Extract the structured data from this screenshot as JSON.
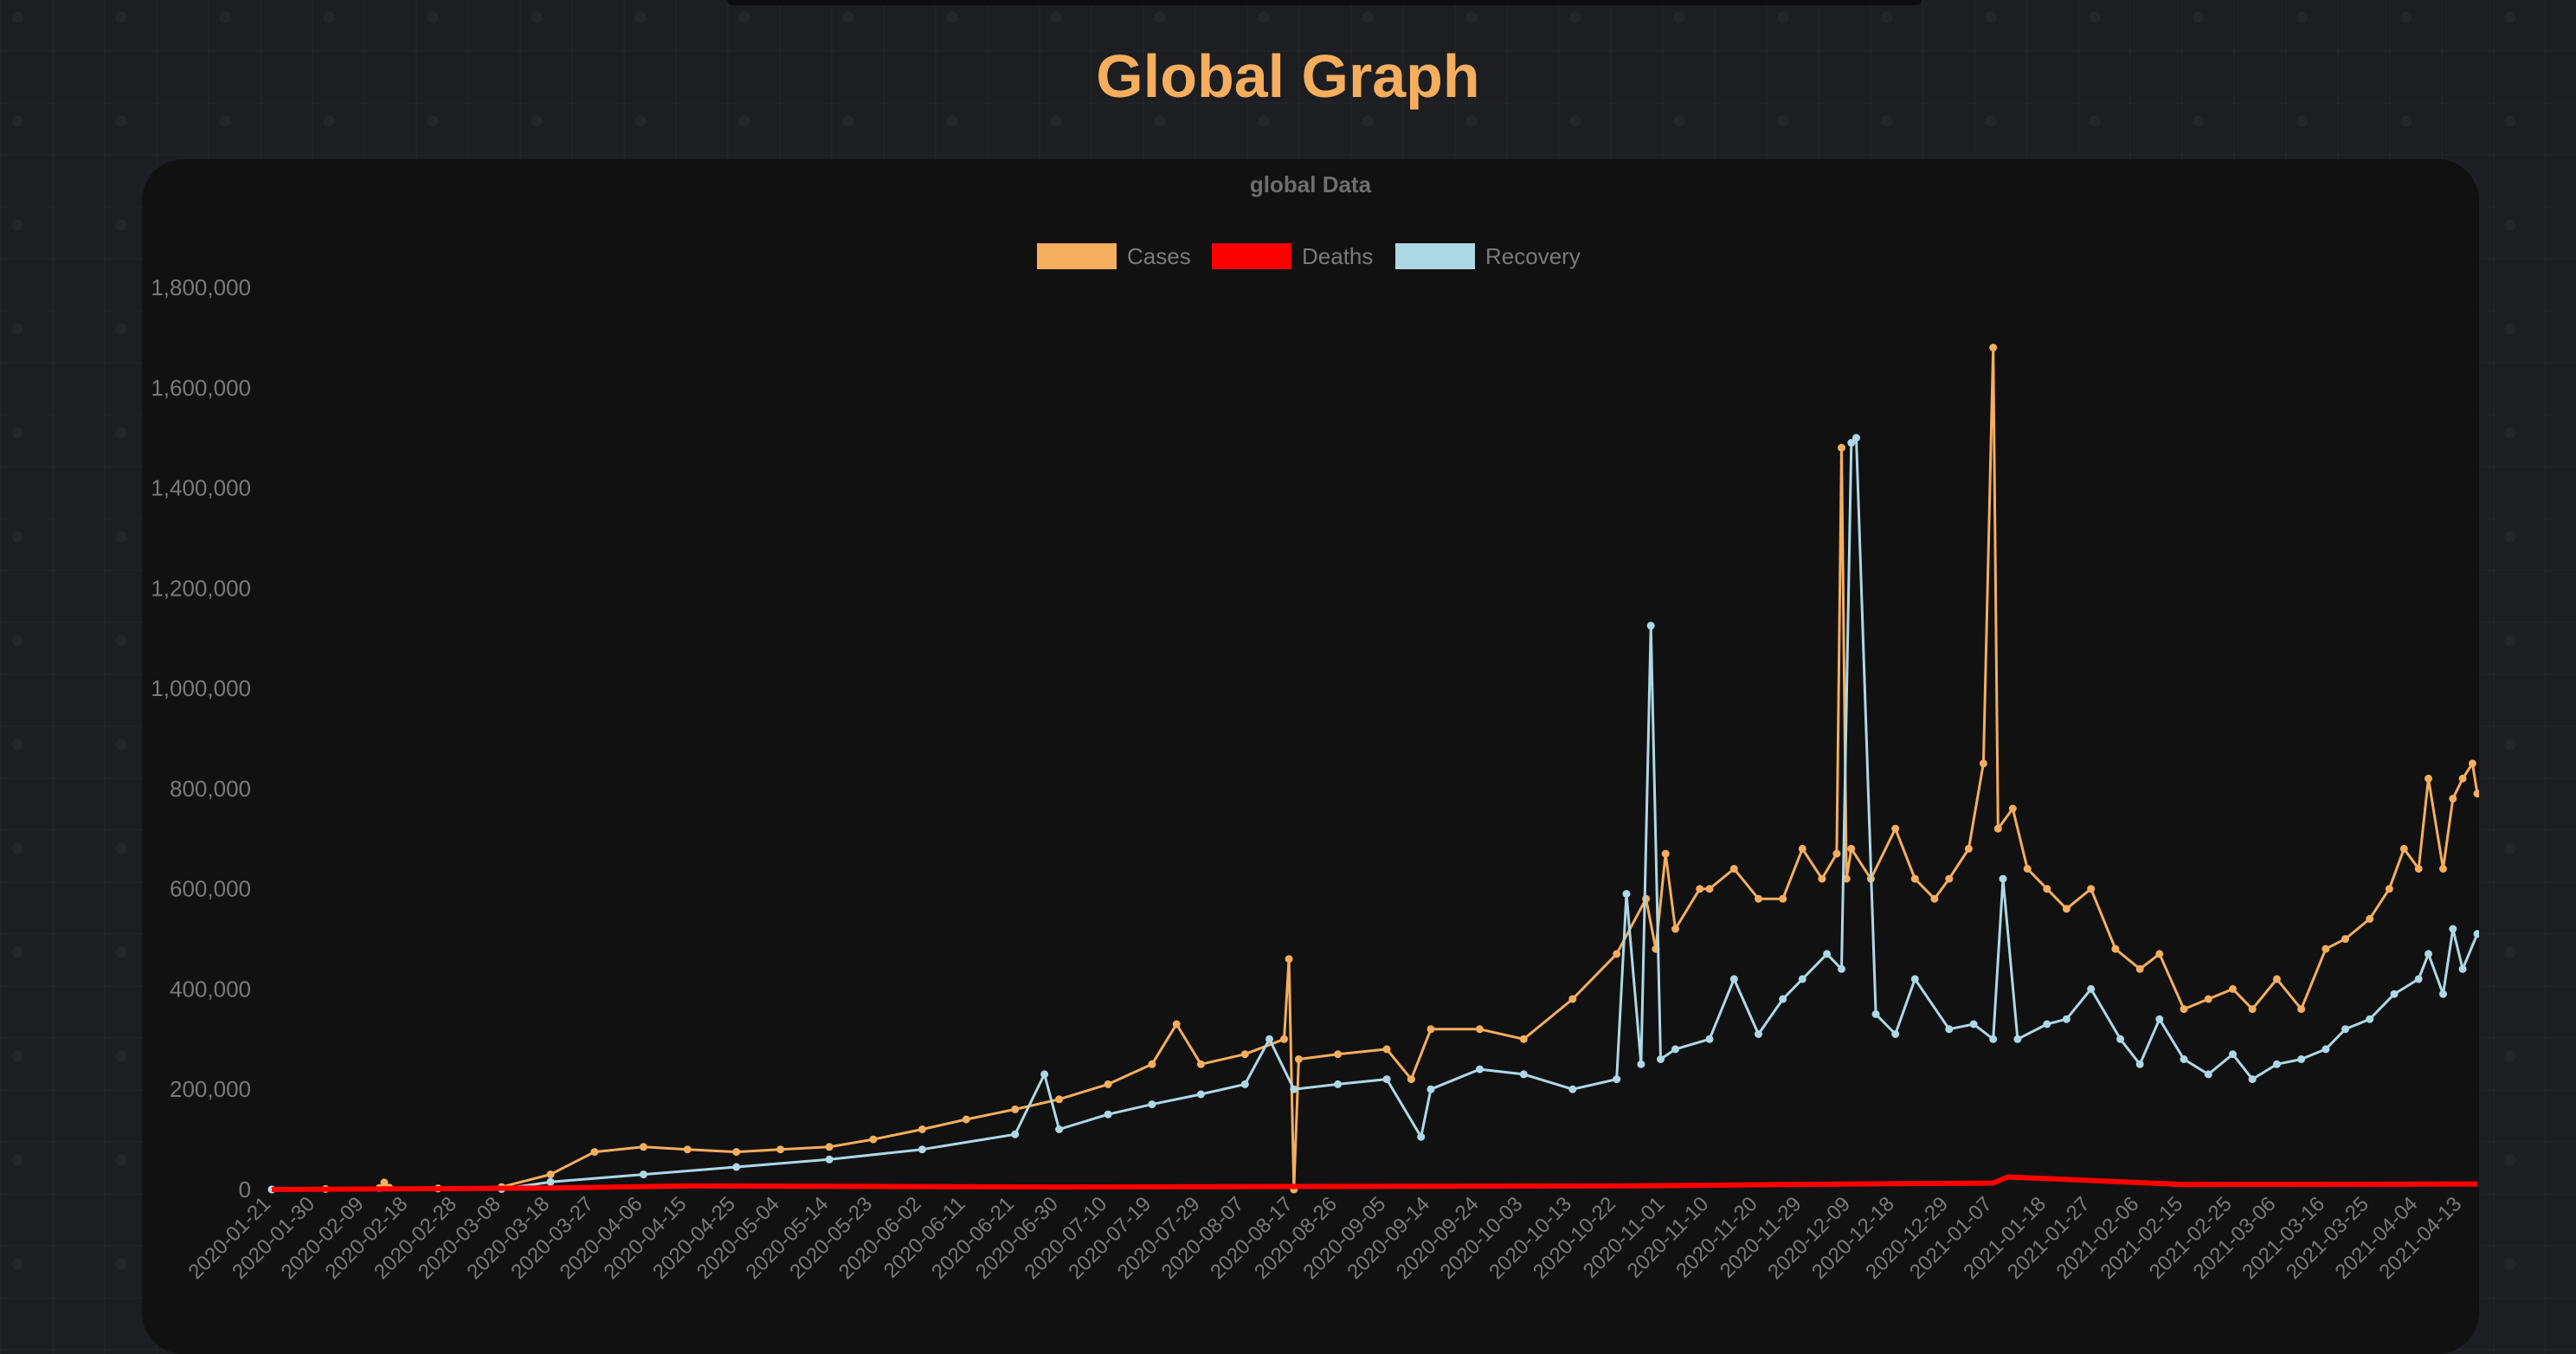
{
  "page": {
    "title": "Global Graph"
  },
  "chart_data": {
    "type": "line",
    "title": "global Data",
    "legend_position": "top",
    "grid": false,
    "ylim": [
      0,
      1800000
    ],
    "y_ticks": [
      0,
      200000,
      400000,
      600000,
      800000,
      1000000,
      1200000,
      1400000,
      1600000,
      1800000
    ],
    "y_tick_labels": [
      "0",
      "200,000",
      "400,000",
      "600,000",
      "800,000",
      "1,000,000",
      "1,200,000",
      "1,400,000",
      "1,600,000",
      "1,800,000"
    ],
    "x_tick_labels": [
      "2020-01-21",
      "2020-01-30",
      "2020-02-09",
      "2020-02-18",
      "2020-02-28",
      "2020-03-08",
      "2020-03-18",
      "2020-03-27",
      "2020-04-06",
      "2020-04-15",
      "2020-04-25",
      "2020-05-04",
      "2020-05-14",
      "2020-05-23",
      "2020-06-02",
      "2020-06-11",
      "2020-06-21",
      "2020-06-30",
      "2020-07-10",
      "2020-07-19",
      "2020-07-29",
      "2020-08-07",
      "2020-08-17",
      "2020-08-26",
      "2020-09-05",
      "2020-09-14",
      "2020-09-24",
      "2020-10-03",
      "2020-10-13",
      "2020-10-22",
      "2020-11-01",
      "2020-11-10",
      "2020-11-20",
      "2020-11-29",
      "2020-12-09",
      "2020-12-18",
      "2020-12-29",
      "2021-01-07",
      "2021-01-18",
      "2021-01-27",
      "2021-02-06",
      "2021-02-15",
      "2021-02-25",
      "2021-03-06",
      "2021-03-16",
      "2021-03-25",
      "2021-04-04",
      "2021-04-13"
    ],
    "x_start": "2020-01-21",
    "x_end": "2021-04-16",
    "colors": {
      "cases": "#f4ae5e",
      "deaths": "#ff0000",
      "recovery": "#add8e6"
    },
    "series": [
      {
        "name": "Cases",
        "key": "cases",
        "x": [
          "2020-01-21",
          "2020-02-01",
          "2020-02-12",
          "2020-02-13",
          "2020-02-14",
          "2020-02-24",
          "2020-03-08",
          "2020-03-18",
          "2020-03-27",
          "2020-04-06",
          "2020-04-15",
          "2020-04-25",
          "2020-05-04",
          "2020-05-14",
          "2020-05-23",
          "2020-06-02",
          "2020-06-11",
          "2020-06-21",
          "2020-06-30",
          "2020-07-10",
          "2020-07-19",
          "2020-07-24",
          "2020-07-29",
          "2020-08-07",
          "2020-08-15",
          "2020-08-16",
          "2020-08-17",
          "2020-08-18",
          "2020-08-26",
          "2020-09-05",
          "2020-09-10",
          "2020-09-14",
          "2020-09-24",
          "2020-10-03",
          "2020-10-13",
          "2020-10-22",
          "2020-10-28",
          "2020-10-30",
          "2020-11-01",
          "2020-11-03",
          "2020-11-08",
          "2020-11-10",
          "2020-11-15",
          "2020-11-20",
          "2020-11-25",
          "2020-11-29",
          "2020-12-03",
          "2020-12-06",
          "2020-12-07",
          "2020-12-08",
          "2020-12-09",
          "2020-12-13",
          "2020-12-18",
          "2020-12-22",
          "2020-12-26",
          "2020-12-29",
          "2021-01-02",
          "2021-01-05",
          "2021-01-07",
          "2021-01-08",
          "2021-01-11",
          "2021-01-14",
          "2021-01-18",
          "2021-01-22",
          "2021-01-27",
          "2021-02-01",
          "2021-02-06",
          "2021-02-10",
          "2021-02-15",
          "2021-02-20",
          "2021-02-25",
          "2021-03-01",
          "2021-03-06",
          "2021-03-11",
          "2021-03-16",
          "2021-03-20",
          "2021-03-25",
          "2021-03-29",
          "2021-04-01",
          "2021-04-04",
          "2021-04-06",
          "2021-04-09",
          "2021-04-11",
          "2021-04-13",
          "2021-04-15",
          "2021-04-16"
        ],
        "y": [
          0,
          1000,
          3000,
          14000,
          4000,
          2000,
          5000,
          30000,
          75000,
          85000,
          80000,
          75000,
          80000,
          85000,
          100000,
          120000,
          140000,
          160000,
          180000,
          210000,
          250000,
          330000,
          250000,
          270000,
          300000,
          460000,
          0,
          260000,
          270000,
          280000,
          220000,
          320000,
          320000,
          300000,
          380000,
          470000,
          580000,
          480000,
          670000,
          520000,
          600000,
          600000,
          640000,
          580000,
          580000,
          680000,
          620000,
          670000,
          1480000,
          620000,
          680000,
          620000,
          720000,
          620000,
          580000,
          620000,
          680000,
          850000,
          1680000,
          720000,
          760000,
          640000,
          600000,
          560000,
          600000,
          480000,
          440000,
          470000,
          360000,
          380000,
          400000,
          360000,
          420000,
          360000,
          480000,
          500000,
          540000,
          600000,
          680000,
          640000,
          820000,
          640000,
          780000,
          820000,
          850000,
          790000
        ]
      },
      {
        "name": "Deaths",
        "key": "deaths",
        "x": [
          "2020-01-21",
          "2020-03-18",
          "2020-04-15",
          "2020-06-30",
          "2020-08-17",
          "2020-10-22",
          "2020-12-09",
          "2021-01-07",
          "2021-01-10",
          "2021-02-15",
          "2021-04-16"
        ],
        "y": [
          0,
          3000,
          7000,
          5000,
          6000,
          7000,
          11000,
          13000,
          25000,
          10000,
          11000
        ]
      },
      {
        "name": "Recovery",
        "key": "recovery",
        "x": [
          "2020-01-21",
          "2020-03-08",
          "2020-03-18",
          "2020-04-06",
          "2020-04-25",
          "2020-05-14",
          "2020-06-02",
          "2020-06-21",
          "2020-06-27",
          "2020-06-30",
          "2020-07-10",
          "2020-07-19",
          "2020-07-29",
          "2020-08-07",
          "2020-08-12",
          "2020-08-17",
          "2020-08-26",
          "2020-09-05",
          "2020-09-12",
          "2020-09-14",
          "2020-09-24",
          "2020-10-03",
          "2020-10-13",
          "2020-10-22",
          "2020-10-24",
          "2020-10-27",
          "2020-10-29",
          "2020-10-31",
          "2020-11-03",
          "2020-11-10",
          "2020-11-15",
          "2020-11-20",
          "2020-11-25",
          "2020-11-29",
          "2020-12-04",
          "2020-12-07",
          "2020-12-09",
          "2020-12-10",
          "2020-12-14",
          "2020-12-18",
          "2020-12-22",
          "2020-12-29",
          "2021-01-03",
          "2021-01-07",
          "2021-01-09",
          "2021-01-12",
          "2021-01-18",
          "2021-01-22",
          "2021-01-27",
          "2021-02-02",
          "2021-02-06",
          "2021-02-10",
          "2021-02-15",
          "2021-02-20",
          "2021-02-25",
          "2021-03-01",
          "2021-03-06",
          "2021-03-11",
          "2021-03-16",
          "2021-03-20",
          "2021-03-25",
          "2021-03-30",
          "2021-04-04",
          "2021-04-06",
          "2021-04-09",
          "2021-04-11",
          "2021-04-13",
          "2021-04-16"
        ],
        "y": [
          0,
          1000,
          15000,
          30000,
          45000,
          60000,
          80000,
          110000,
          230000,
          120000,
          150000,
          170000,
          190000,
          210000,
          300000,
          200000,
          210000,
          220000,
          105000,
          200000,
          240000,
          230000,
          200000,
          220000,
          590000,
          250000,
          1125000,
          260000,
          280000,
          300000,
          420000,
          310000,
          380000,
          420000,
          470000,
          440000,
          1490000,
          1500000,
          350000,
          310000,
          420000,
          320000,
          330000,
          300000,
          620000,
          300000,
          330000,
          340000,
          400000,
          300000,
          250000,
          340000,
          260000,
          230000,
          270000,
          220000,
          250000,
          260000,
          280000,
          320000,
          340000,
          390000,
          420000,
          470000,
          390000,
          520000,
          440000,
          510000
        ]
      }
    ]
  }
}
